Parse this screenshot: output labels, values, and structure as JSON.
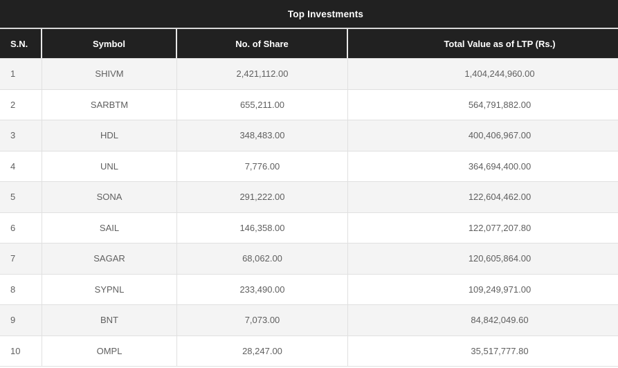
{
  "title": "Top Investments",
  "table": {
    "columns": [
      "S.N.",
      "Symbol",
      "No. of Share",
      "Total Value as of LTP (Rs.)"
    ],
    "rows": [
      [
        "1",
        "SHIVM",
        "2,421,112.00",
        "1,404,244,960.00"
      ],
      [
        "2",
        "SARBTM",
        "655,211.00",
        "564,791,882.00"
      ],
      [
        "3",
        "HDL",
        "348,483.00",
        "400,406,967.00"
      ],
      [
        "4",
        "UNL",
        "7,776.00",
        "364,694,400.00"
      ],
      [
        "5",
        "SONA",
        "291,222.00",
        "122,604,462.00"
      ],
      [
        "6",
        "SAIL",
        "146,358.00",
        "122,077,207.80"
      ],
      [
        "7",
        "SAGAR",
        "68,062.00",
        "120,605,864.00"
      ],
      [
        "8",
        "SYPNL",
        "233,490.00",
        "109,249,971.00"
      ],
      [
        "9",
        "BNT",
        "7,073.00",
        "84,842,049.60"
      ],
      [
        "10",
        "OMPL",
        "28,247.00",
        "35,517,777.80"
      ]
    ]
  },
  "colors": {
    "header_bg": "#212121",
    "header_text": "#ffffff",
    "divider": "#d9d9d9",
    "header_divider": "#e9e9e9",
    "border": "#e0e0e0",
    "row_bg": "#ffffff",
    "row_stripe_bg": "#f4f4f4",
    "body_text": "#5f5f5f"
  }
}
